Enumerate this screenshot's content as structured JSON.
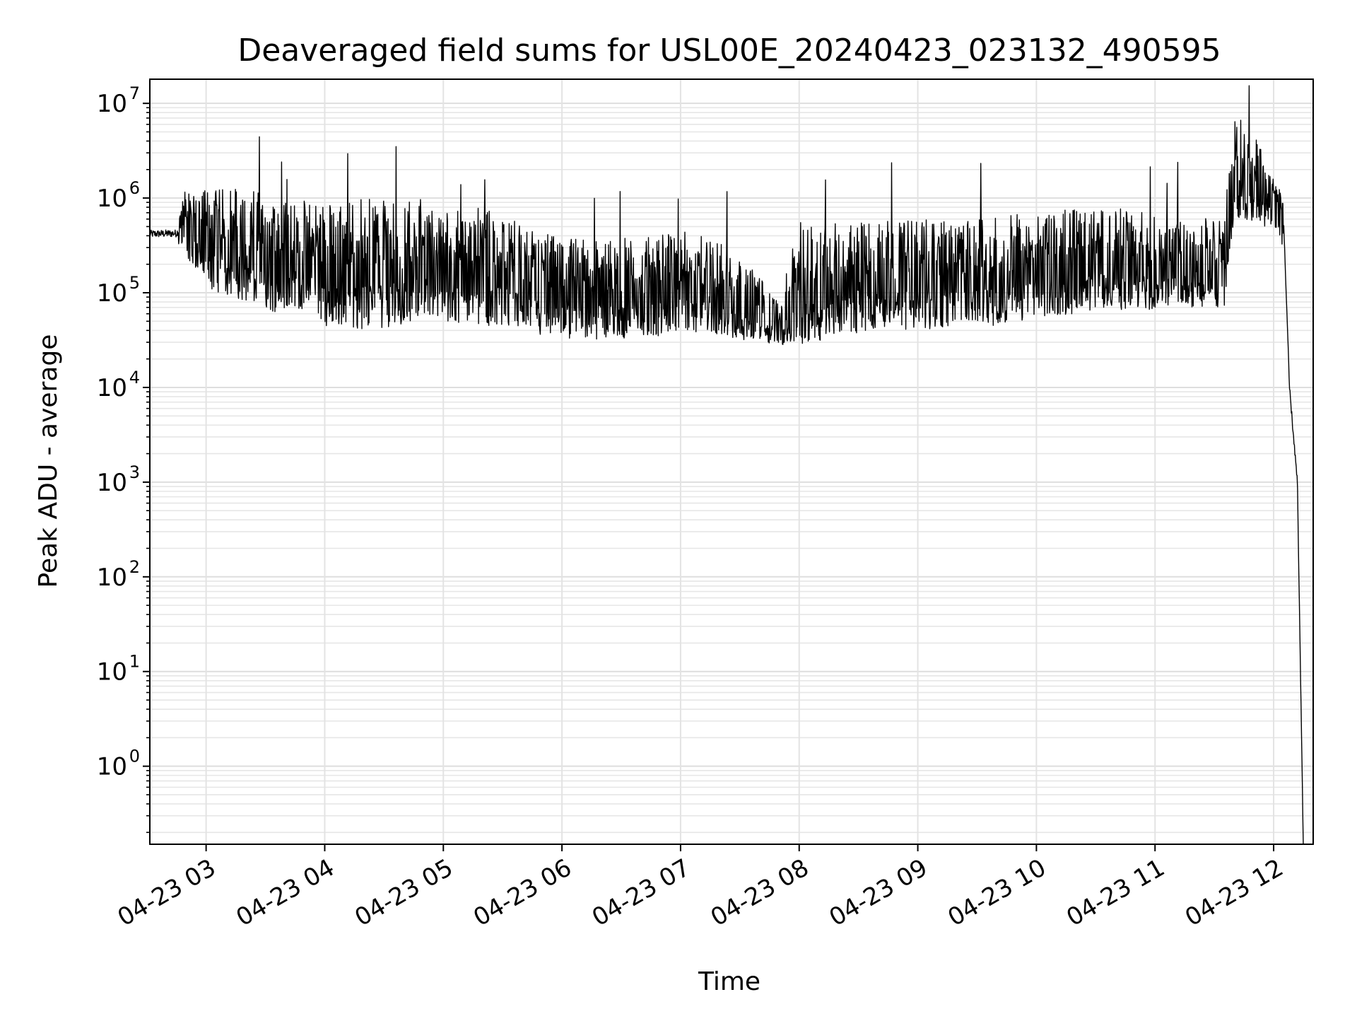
{
  "chart_data": {
    "type": "line",
    "title": "Deaveraged field sums for USL00E_20240423_023132_490595",
    "xlabel": "Time",
    "ylabel": "Peak ADU - average",
    "yscale": "log",
    "ylim": [
      0.15,
      18000000
    ],
    "xlim": [
      "2024-04-23 02:31:32",
      "2024-04-23 12:20:00"
    ],
    "grid": true,
    "x_ticks": [
      "04-23 03",
      "04-23 04",
      "04-23 05",
      "04-23 06",
      "04-23 07",
      "04-23 08",
      "04-23 09",
      "04-23 10",
      "04-23 11",
      "04-23 12"
    ],
    "y_ticks": [
      {
        "base": "10",
        "exp": "0",
        "value": 1
      },
      {
        "base": "10",
        "exp": "1",
        "value": 10
      },
      {
        "base": "10",
        "exp": "2",
        "value": 100
      },
      {
        "base": "10",
        "exp": "3",
        "value": 1000
      },
      {
        "base": "10",
        "exp": "4",
        "value": 10000
      },
      {
        "base": "10",
        "exp": "5",
        "value": 100000
      },
      {
        "base": "10",
        "exp": "6",
        "value": 1000000
      },
      {
        "base": "10",
        "exp": "7",
        "value": 10000000
      }
    ],
    "series": [
      {
        "color": "#000000",
        "envelope": [
          {
            "x": "2024-04-23 02:31:32",
            "low": 350000,
            "high": 500000,
            "spikes": 0
          },
          {
            "x": "2024-04-23 02:45",
            "low": 300000,
            "high": 600000,
            "spikes": 0
          },
          {
            "x": "2024-04-23 02:50",
            "low": 250000,
            "high": 1300000,
            "spikes": 1
          },
          {
            "x": "2024-04-23 03:00",
            "low": 110000,
            "high": 1200000,
            "spikes": 2
          },
          {
            "x": "2024-04-23 03:15",
            "low": 90000,
            "high": 1300000,
            "spikes": 3
          },
          {
            "x": "2024-04-23 03:30",
            "low": 60000,
            "high": 1100000,
            "spikes": 4
          },
          {
            "x": "2024-04-23 03:45",
            "low": 70000,
            "high": 1000000,
            "spikes": 2
          },
          {
            "x": "2024-04-23 04:00",
            "low": 45000,
            "high": 900000,
            "spikes": 2
          },
          {
            "x": "2024-04-23 04:20",
            "low": 40000,
            "high": 1000000,
            "spikes": 1
          },
          {
            "x": "2024-04-23 04:40",
            "low": 45000,
            "high": 900000,
            "spikes": 1
          },
          {
            "x": "2024-04-23 04:50",
            "low": 60000,
            "high": 1100000,
            "spikes": 2
          },
          {
            "x": "2024-04-23 05:00",
            "low": 50000,
            "high": 700000,
            "spikes": 1
          },
          {
            "x": "2024-04-23 05:15",
            "low": 45000,
            "high": 800000,
            "spikes": 1
          },
          {
            "x": "2024-04-23 05:30",
            "low": 45000,
            "high": 700000,
            "spikes": 1
          },
          {
            "x": "2024-04-23 05:45",
            "low": 35000,
            "high": 450000,
            "spikes": 1
          },
          {
            "x": "2024-04-23 06:00",
            "low": 30000,
            "high": 400000,
            "spikes": 1
          },
          {
            "x": "2024-04-23 06:20",
            "low": 30000,
            "high": 350000,
            "spikes": 1
          },
          {
            "x": "2024-04-23 06:40",
            "low": 35000,
            "high": 400000,
            "spikes": 1
          },
          {
            "x": "2024-04-23 07:00",
            "low": 35000,
            "high": 450000,
            "spikes": 1
          },
          {
            "x": "2024-04-23 07:20",
            "low": 35000,
            "high": 350000,
            "spikes": 1
          },
          {
            "x": "2024-04-23 07:40",
            "low": 30000,
            "high": 150000,
            "spikes": 0
          },
          {
            "x": "2024-04-23 07:50",
            "low": 28000,
            "high": 80000,
            "spikes": 0
          },
          {
            "x": "2024-04-23 08:00",
            "low": 28000,
            "high": 550000,
            "spikes": 1
          },
          {
            "x": "2024-04-23 08:20",
            "low": 35000,
            "high": 600000,
            "spikes": 1
          },
          {
            "x": "2024-04-23 08:40",
            "low": 40000,
            "high": 600000,
            "spikes": 1
          },
          {
            "x": "2024-04-23 09:00",
            "low": 40000,
            "high": 600000,
            "spikes": 1
          },
          {
            "x": "2024-04-23 09:20",
            "low": 45000,
            "high": 550000,
            "spikes": 1
          },
          {
            "x": "2024-04-23 09:40",
            "low": 45000,
            "high": 650000,
            "spikes": 1
          },
          {
            "x": "2024-04-23 10:00",
            "low": 55000,
            "high": 700000,
            "spikes": 1
          },
          {
            "x": "2024-04-23 10:20",
            "low": 60000,
            "high": 800000,
            "spikes": 1
          },
          {
            "x": "2024-04-23 10:40",
            "low": 65000,
            "high": 800000,
            "spikes": 2
          },
          {
            "x": "2024-04-23 11:00",
            "low": 65000,
            "high": 700000,
            "spikes": 2
          },
          {
            "x": "2024-04-23 11:20",
            "low": 70000,
            "high": 650000,
            "spikes": 2
          },
          {
            "x": "2024-04-23 11:35",
            "low": 70000,
            "high": 600000,
            "spikes": 1
          },
          {
            "x": "2024-04-23 11:40",
            "low": 600000,
            "high": 8000000,
            "spikes": 2
          },
          {
            "x": "2024-04-23 11:50",
            "low": 500000,
            "high": 5000000,
            "spikes": 2
          },
          {
            "x": "2024-04-23 12:00",
            "low": 500000,
            "high": 1600000,
            "spikes": 0
          },
          {
            "x": "2024-04-23 12:05",
            "low": 300000,
            "high": 1300000,
            "spikes": 0
          },
          {
            "x": "2024-04-23 12:08",
            "low": 10000,
            "high": 10000,
            "spikes": 0
          },
          {
            "x": "2024-04-23 12:12",
            "low": 1000,
            "high": 1000,
            "spikes": 0
          },
          {
            "x": "2024-04-23 12:15",
            "low": 0.15,
            "high": 0.15,
            "spikes": 0
          }
        ]
      }
    ]
  }
}
